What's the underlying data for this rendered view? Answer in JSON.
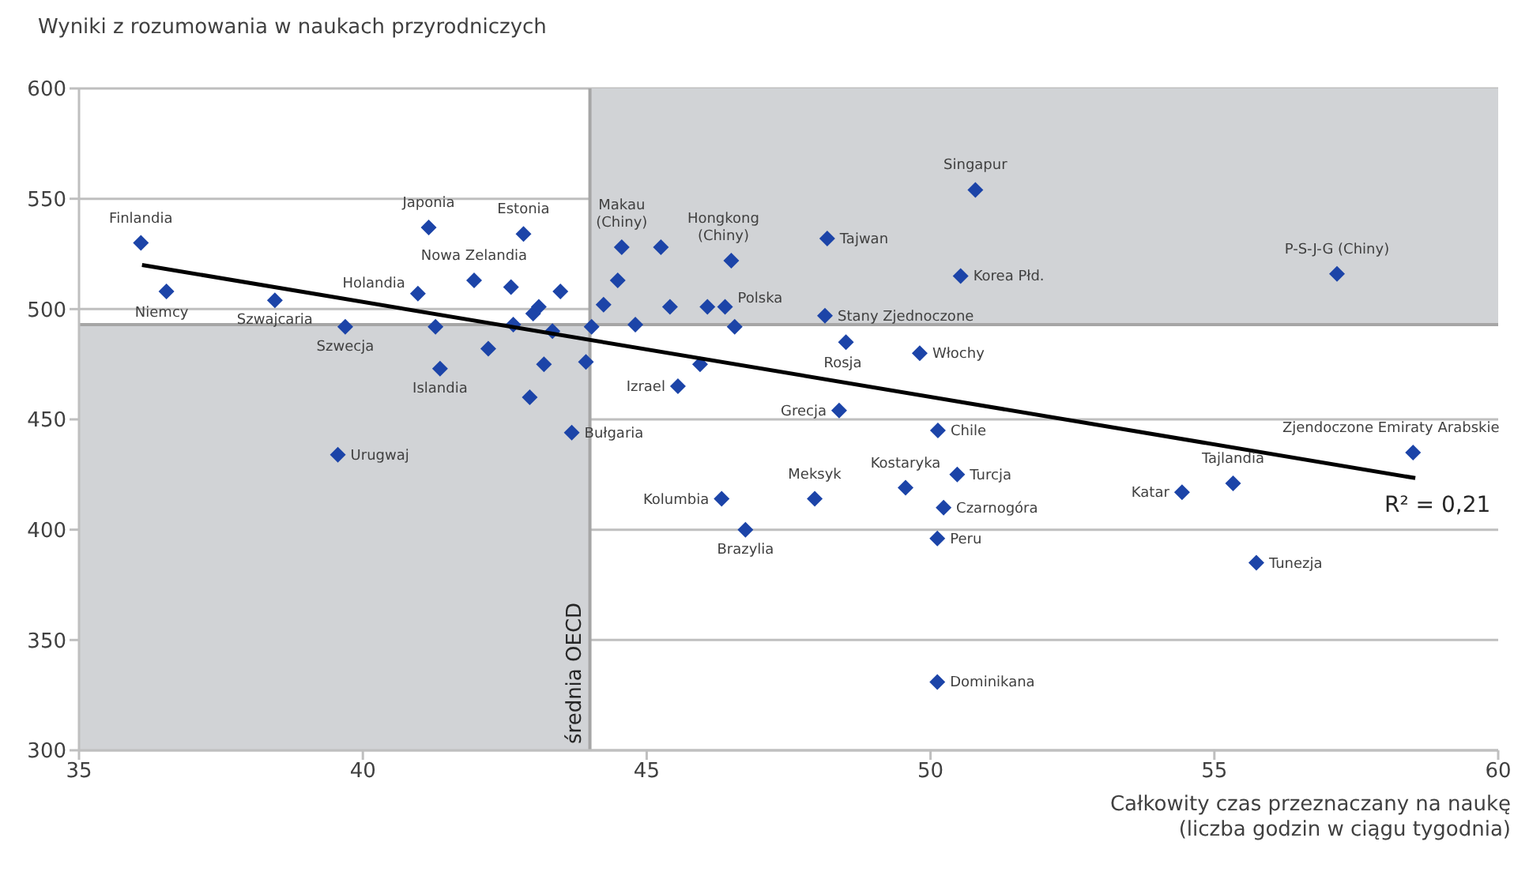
{
  "chart_data": {
    "type": "scatter",
    "ylabel": "Wyniki z rozumowania w naukach przyrodniczych",
    "xlabel": "Całkowity czas przeznaczany na naukę\n(liczba godzin w ciągu tygodnia)",
    "xlim": [
      35,
      60
    ],
    "xticks": [
      35,
      40,
      45,
      50,
      55,
      60
    ],
    "ylim": [
      300,
      600
    ],
    "yticks": [
      300,
      350,
      400,
      450,
      500,
      550,
      600
    ],
    "grid": "y",
    "series": [
      {
        "color": "#1c44a8",
        "marker": "diamond",
        "x": [
          36.09,
          36.54,
          38.45,
          39.69,
          41.16,
          40.97,
          41.28,
          41.36,
          41.96,
          42.83,
          42.61,
          42.21,
          42.65,
          43.0,
          43.1,
          43.34,
          43.48,
          42.94,
          43.19,
          43.93,
          44.03,
          43.68,
          39.56,
          44.24,
          44.49,
          44.56,
          45.25,
          44.8,
          45.41,
          46.07,
          46.38,
          46.55,
          46.49,
          45.94,
          45.55,
          48.18,
          48.14,
          48.51,
          48.39,
          49.81,
          50.79,
          50.53,
          50.13,
          57.16,
          58.5,
          55.33,
          54.43,
          46.32,
          46.74,
          47.96,
          49.56,
          50.47,
          50.23,
          50.12,
          50.12,
          55.74
        ],
        "values": [
          530,
          508,
          504,
          492,
          537,
          507,
          492,
          473,
          513,
          534,
          510,
          482,
          493,
          498,
          501,
          490,
          508,
          460,
          475,
          476,
          492,
          444,
          434,
          502,
          513,
          528,
          528,
          493,
          501,
          501,
          501,
          492,
          522,
          475,
          465,
          532,
          497,
          485,
          454,
          480,
          554,
          515,
          445,
          516,
          435,
          421,
          417,
          414,
          400,
          414,
          419,
          425,
          410,
          396,
          331,
          385
        ]
      },
      {
        "type": "line",
        "marker": "none",
        "color": "#000000",
        "x": [
          36.11,
          58.54
        ],
        "values": [
          520,
          423.4
        ]
      }
    ],
    "ref_lines": [
      {
        "axis": "x",
        "value": 44,
        "label": "średnia OECD",
        "color": "#a6a6a6"
      },
      {
        "axis": "y",
        "value": 493,
        "color": "#a6a6a6"
      }
    ],
    "annotations": [
      {
        "text": "Finlandia",
        "x": 36.09,
        "y": 530
      },
      {
        "text": "Niemcy",
        "x": 36.54,
        "y": 508
      },
      {
        "text": "Szwajcaria",
        "x": 38.45,
        "y": 504
      },
      {
        "text": "Szwecja",
        "x": 39.69,
        "y": 492
      },
      {
        "text": "Holandia",
        "x": 40.97,
        "y": 507
      },
      {
        "text": "Japonia",
        "x": 41.16,
        "y": 537
      },
      {
        "text": "Estonia",
        "x": 42.83,
        "y": 534
      },
      {
        "text": "Nowa Zelandia",
        "x": 41.96,
        "y": 513
      },
      {
        "text": "Islandia",
        "x": 41.36,
        "y": 473
      },
      {
        "text": "Bułgaria",
        "x": 43.68,
        "y": 444
      },
      {
        "text": "Urugwaj",
        "x": 39.56,
        "y": 434
      },
      {
        "text": "Makau\n(Chiny)",
        "x": 44.56,
        "y": 528
      },
      {
        "text": "Hongkong\n(Chiny)",
        "x": 46.49,
        "y": 522
      },
      {
        "text": "Polska",
        "x": 46.38,
        "y": 501
      },
      {
        "text": "Tajwan",
        "x": 48.18,
        "y": 532
      },
      {
        "text": "Stany Zjednoczone",
        "x": 48.14,
        "y": 497
      },
      {
        "text": "Rosja",
        "x": 48.51,
        "y": 485
      },
      {
        "text": "Izrael",
        "x": 45.55,
        "y": 465
      },
      {
        "text": "Grecja",
        "x": 48.39,
        "y": 454
      },
      {
        "text": "Włochy",
        "x": 49.81,
        "y": 480
      },
      {
        "text": "Singapur",
        "x": 50.79,
        "y": 554
      },
      {
        "text": "Korea Płd.",
        "x": 50.53,
        "y": 515
      },
      {
        "text": "Chile",
        "x": 50.13,
        "y": 445
      },
      {
        "text": "P-S-J-G (Chiny)",
        "x": 57.16,
        "y": 516
      },
      {
        "text": "Zjendoczone Emiraty Arabskie",
        "x": 58.5,
        "y": 435
      },
      {
        "text": "Tajlandia",
        "x": 55.33,
        "y": 421
      },
      {
        "text": "Katar",
        "x": 54.43,
        "y": 417
      },
      {
        "text": "Kolumbia",
        "x": 46.32,
        "y": 414
      },
      {
        "text": "Brazylia",
        "x": 46.74,
        "y": 400
      },
      {
        "text": "Meksyk",
        "x": 47.96,
        "y": 414
      },
      {
        "text": "Kostaryka",
        "x": 49.56,
        "y": 419
      },
      {
        "text": "Turcja",
        "x": 50.47,
        "y": 425
      },
      {
        "text": "Czarnogóra",
        "x": 50.23,
        "y": 410
      },
      {
        "text": "Peru",
        "x": 50.12,
        "y": 396
      },
      {
        "text": "Dominikana",
        "x": 50.12,
        "y": 331
      },
      {
        "text": "Tunezja",
        "x": 55.74,
        "y": 385
      },
      "R² = 0,21"
    ]
  }
}
